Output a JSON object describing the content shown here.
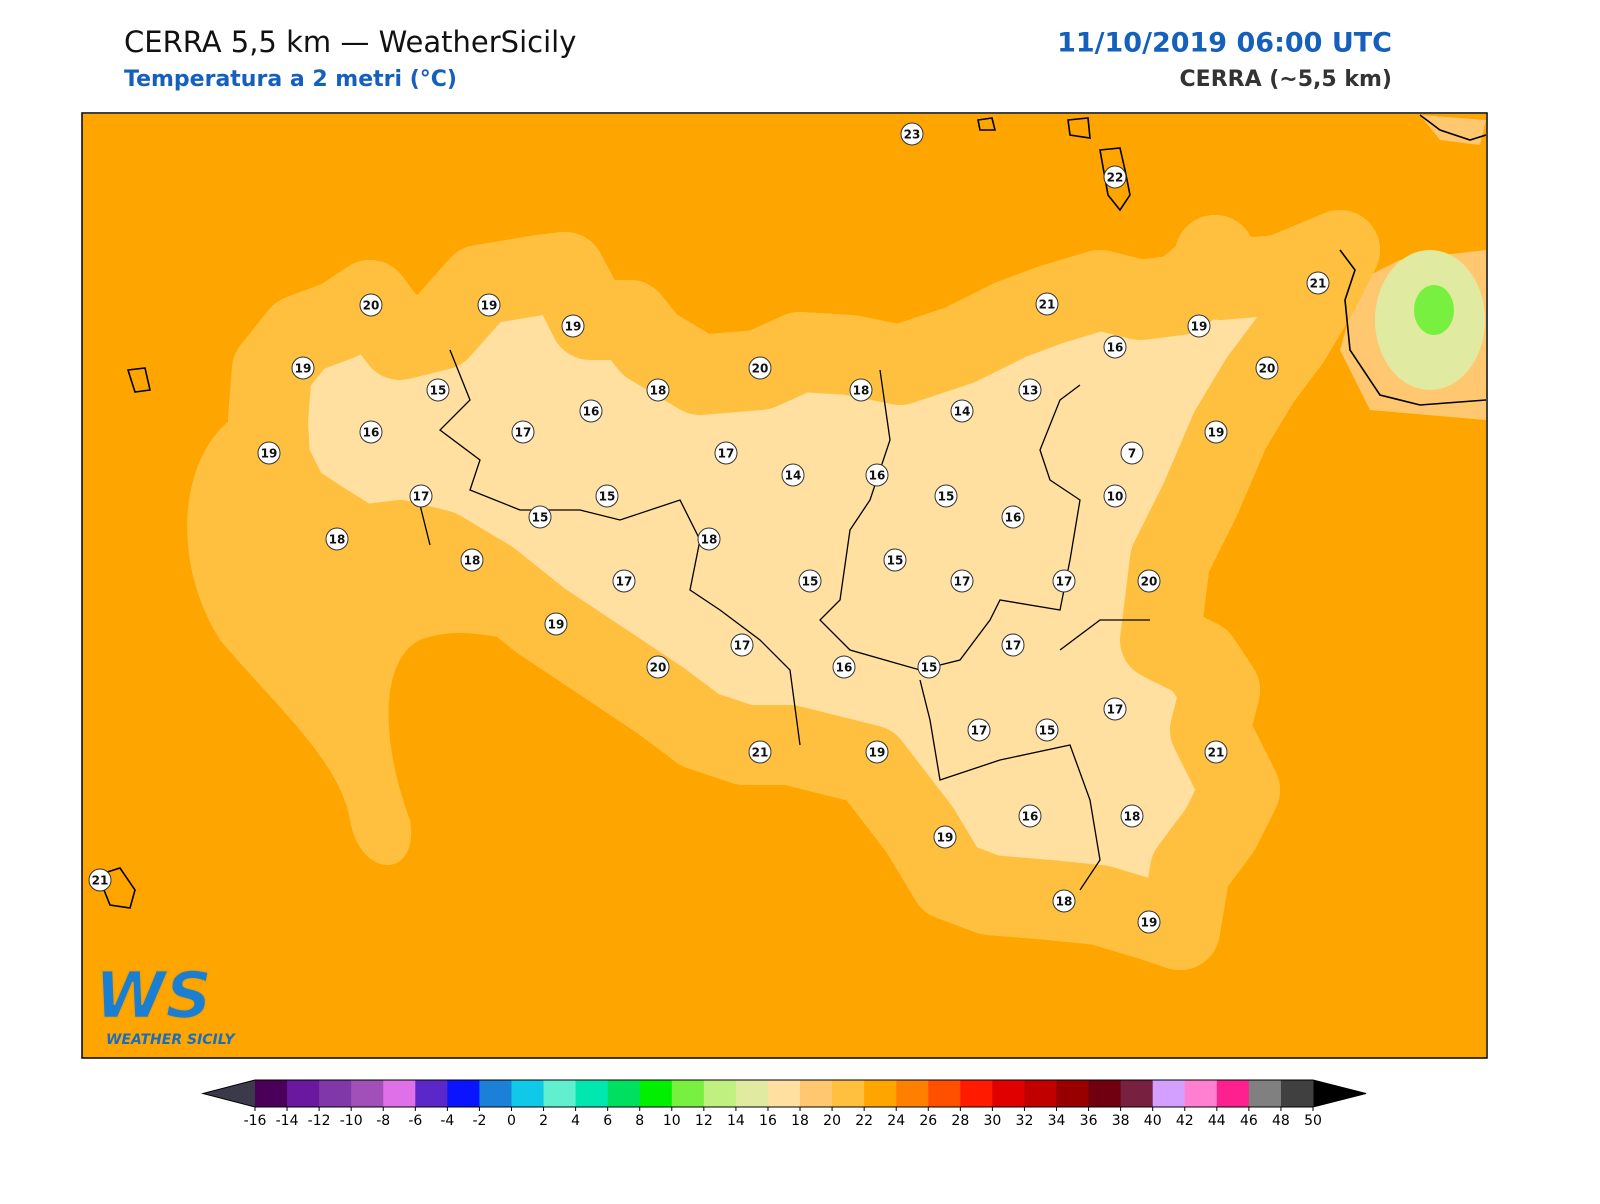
{
  "header": {
    "title": "CERRA 5,5 km — WeatherSicily",
    "subtitle": "Temperatura a 2 metri (°C)",
    "datetime": "11/10/2019 06:00 UTC",
    "model": "CERRA (~5,5 km)"
  },
  "logo": {
    "mark": "WS",
    "text": "WEATHER SICILY"
  },
  "stations": [
    23,
    22,
    20,
    19,
    19,
    21,
    21,
    19,
    16,
    19,
    15,
    18,
    20,
    18,
    13,
    20,
    16,
    17,
    16,
    14,
    19,
    19,
    17,
    14,
    16,
    7,
    17,
    15,
    15,
    10,
    18,
    15,
    18,
    16,
    18,
    17,
    15,
    15,
    17,
    17,
    20,
    19,
    17,
    17,
    20,
    16,
    15,
    17,
    17,
    15,
    21,
    19,
    21,
    16,
    18,
    19,
    21,
    18,
    19
  ],
  "colorbar": {
    "ticks": [
      -16,
      -14,
      -12,
      -10,
      -8,
      -6,
      -4,
      -2,
      0,
      2,
      4,
      6,
      8,
      10,
      12,
      14,
      16,
      18,
      20,
      22,
      24,
      26,
      28,
      30,
      32,
      34,
      36,
      38,
      40,
      42,
      44,
      46,
      48,
      50
    ],
    "colors": [
      "#4a0058",
      "#6a18a0",
      "#8038a8",
      "#a050b8",
      "#e070e8",
      "#5a28c8",
      "#0a14ff",
      "#1a80d8",
      "#10c8e8",
      "#60f0d0",
      "#00e8b0",
      "#00e060",
      "#00f000",
      "#78f040",
      "#c0f080",
      "#e0eaa0",
      "#ffe0a0",
      "#ffc870",
      "#ffc040",
      "#ffa500",
      "#ff8000",
      "#ff5000",
      "#ff1a00",
      "#e00000",
      "#c00000",
      "#980000",
      "#700010",
      "#782040",
      "#d4a0ff",
      "#ff80d0",
      "#ff2090",
      "#808080",
      "#404040"
    ],
    "under": "#3a3a4a",
    "over": "#000000"
  }
}
